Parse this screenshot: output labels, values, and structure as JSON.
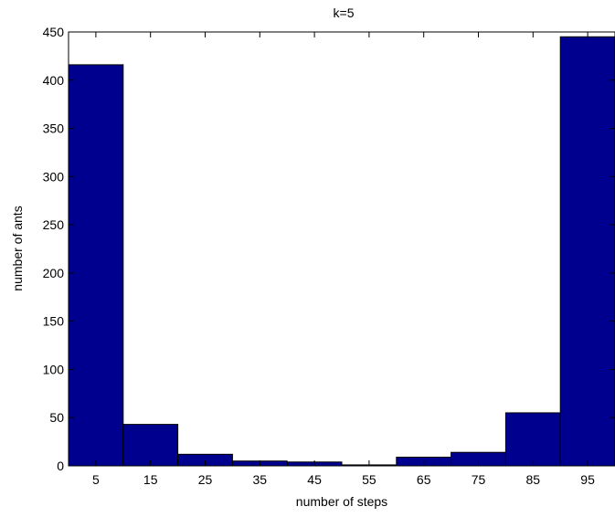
{
  "chart_data": {
    "type": "bar",
    "title": "k=5",
    "xlabel": "number of steps",
    "ylabel": "number of ants",
    "categories": [
      "5",
      "15",
      "25",
      "35",
      "45",
      "55",
      "65",
      "75",
      "85",
      "95"
    ],
    "x": [
      5,
      15,
      25,
      35,
      45,
      55,
      65,
      75,
      85,
      95
    ],
    "values": [
      416,
      43,
      12,
      5,
      4,
      1,
      9,
      14,
      55,
      445
    ],
    "xlim": [
      0,
      100
    ],
    "ylim": [
      0,
      450
    ],
    "yticks": [
      0,
      50,
      100,
      150,
      200,
      250,
      300,
      350,
      400,
      450
    ],
    "grid": false,
    "bar_color": "#00008f"
  }
}
